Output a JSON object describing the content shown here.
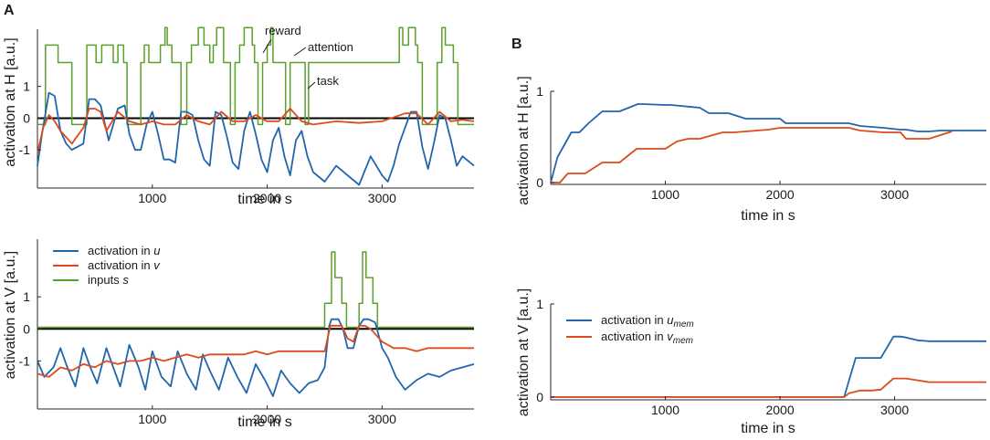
{
  "colors": {
    "u": "#2166ac",
    "v": "#dd4a1b",
    "s": "#5aa02c",
    "axis": "#262626",
    "zero": "#000000"
  },
  "panel_labels": {
    "a": "A",
    "b": "B"
  },
  "legend_A": {
    "u": "activation in u",
    "v": "activation in v",
    "s": "inputs s"
  },
  "legend_B": {
    "u": "activation in u",
    "u_sub": "mem",
    "v": "activation in v",
    "v_sub": "mem"
  },
  "annotations": {
    "reward": "reward",
    "attention": "attention",
    "task": "task"
  },
  "chart_data": [
    {
      "id": "A-top",
      "type": "line",
      "title": "",
      "xlabel": "time in s",
      "ylabel": "activation at H [a.u.]",
      "xlim": [
        0,
        3800
      ],
      "ylim": [
        -2.2,
        2.8
      ],
      "xticks": [
        1000,
        2000,
        3000
      ],
      "yticks": [
        1,
        0,
        -1
      ],
      "zero_line": true,
      "series": [
        {
          "name": "activation in u",
          "key": "u",
          "x": [
            0,
            40,
            100,
            150,
            200,
            250,
            300,
            400,
            450,
            500,
            550,
            620,
            700,
            760,
            800,
            850,
            900,
            950,
            1000,
            1050,
            1100,
            1150,
            1200,
            1250,
            1300,
            1350,
            1400,
            1450,
            1500,
            1550,
            1600,
            1650,
            1700,
            1750,
            1800,
            1850,
            1900,
            1950,
            2000,
            2050,
            2100,
            2150,
            2200,
            2250,
            2300,
            2350,
            2400,
            2500,
            2600,
            2700,
            2800,
            2900,
            3000,
            3050,
            3100,
            3150,
            3200,
            3250,
            3300,
            3350,
            3400,
            3450,
            3500,
            3550,
            3600,
            3650,
            3700,
            3800
          ],
          "y": [
            -1.5,
            -0.5,
            0.8,
            0.7,
            -0.4,
            -0.8,
            -1.0,
            -0.8,
            0.6,
            0.6,
            0.4,
            -0.7,
            0.3,
            0.4,
            -0.5,
            -1.0,
            -1.0,
            -0.2,
            0.2,
            -0.5,
            -1.3,
            -1.3,
            -1.4,
            0.2,
            0.2,
            0.1,
            -0.7,
            -1.3,
            -1.5,
            0.2,
            0.1,
            -0.6,
            -1.4,
            -1.6,
            -0.4,
            0.2,
            -0.5,
            -1.3,
            -1.7,
            -0.7,
            -0.3,
            -1.2,
            -1.8,
            -0.7,
            -0.4,
            -1.2,
            -1.7,
            -2.0,
            -1.5,
            -1.8,
            -2.1,
            -1.2,
            -1.8,
            -2.0,
            -1.5,
            -0.8,
            -0.3,
            0.2,
            0.2,
            -0.9,
            -1.6,
            -0.8,
            0.1,
            0.0,
            -0.7,
            -1.5,
            -1.2,
            -1.5
          ]
        },
        {
          "name": "activation in v",
          "key": "v",
          "x": [
            0,
            50,
            100,
            150,
            200,
            300,
            400,
            450,
            500,
            550,
            600,
            700,
            800,
            900,
            1000,
            1100,
            1200,
            1300,
            1400,
            1500,
            1600,
            1700,
            1800,
            1900,
            2000,
            2100,
            2200,
            2300,
            2400,
            2600,
            2800,
            3000,
            3200,
            3300,
            3400,
            3500,
            3600,
            3700,
            3800
          ],
          "y": [
            -1.1,
            -0.3,
            0.1,
            -0.1,
            -0.4,
            -0.8,
            -0.3,
            0.3,
            0.3,
            0.2,
            -0.4,
            0.2,
            -0.1,
            -0.2,
            -0.1,
            -0.2,
            -0.2,
            0.1,
            -0.1,
            -0.2,
            0.2,
            -0.1,
            -0.1,
            0.1,
            -0.1,
            -0.1,
            0.3,
            -0.1,
            -0.2,
            -0.1,
            -0.15,
            -0.1,
            0.15,
            0.15,
            -0.2,
            0.2,
            -0.1,
            -0.05,
            -0.1
          ]
        },
        {
          "name": "inputs s",
          "key": "s",
          "x": [
            0,
            70,
            70,
            180,
            180,
            300,
            300,
            430,
            430,
            510,
            510,
            560,
            560,
            660,
            660,
            700,
            700,
            750,
            750,
            780,
            780,
            900,
            900,
            930,
            930,
            970,
            970,
            1070,
            1070,
            1110,
            1110,
            1130,
            1130,
            1170,
            1170,
            1250,
            1250,
            1300,
            1300,
            1340,
            1340,
            1400,
            1400,
            1450,
            1450,
            1500,
            1500,
            1530,
            1530,
            1560,
            1560,
            1620,
            1620,
            1680,
            1680,
            1720,
            1720,
            1760,
            1760,
            1800,
            1800,
            1870,
            1870,
            1890,
            1890,
            1920,
            1920,
            1960,
            1960,
            2000,
            2000,
            2030,
            2030,
            2050,
            2050,
            2160,
            2160,
            2200,
            2200,
            2330,
            2330,
            2360,
            2360,
            3150,
            3150,
            3180,
            3180,
            3230,
            3230,
            3290,
            3290,
            3310,
            3310,
            3350,
            3350,
            3480,
            3480,
            3520,
            3520,
            3550,
            3550,
            3620,
            3620,
            3660,
            3660,
            3800
          ],
          "y": [
            0,
            0,
            2,
            2,
            1,
            1,
            0,
            0,
            2,
            2,
            1,
            1,
            2,
            2,
            1,
            1,
            2,
            2,
            1,
            1,
            0,
            0,
            1,
            1,
            2,
            2,
            1,
            1,
            2,
            2,
            3,
            3,
            2,
            2,
            1,
            1,
            0,
            0,
            1,
            1,
            2,
            2,
            3,
            3,
            2,
            2,
            1,
            1,
            2,
            2,
            3,
            3,
            1,
            1,
            0,
            0,
            1,
            1,
            2,
            2,
            3,
            3,
            2,
            2,
            1,
            1,
            0,
            0,
            1,
            1,
            2,
            2,
            3,
            3,
            1,
            1,
            0,
            0,
            1,
            1,
            0,
            0,
            1,
            1,
            3,
            3,
            2,
            2,
            3,
            3,
            2,
            2,
            1,
            1,
            0,
            0,
            1,
            1,
            3,
            3,
            2,
            2,
            1,
            1,
            0,
            0
          ]
        }
      ]
    },
    {
      "id": "A-bottom",
      "type": "line",
      "title": "",
      "xlabel": "time in s",
      "ylabel": "activation at V [a.u.]",
      "xlim": [
        0,
        3800
      ],
      "ylim": [
        -2.5,
        2.8
      ],
      "xticks": [
        1000,
        2000,
        3000
      ],
      "yticks": [
        1,
        0,
        -1
      ],
      "zero_line": true,
      "series": [
        {
          "name": "activation in u",
          "key": "u",
          "x": [
            0,
            60,
            140,
            200,
            260,
            330,
            400,
            460,
            520,
            600,
            660,
            720,
            800,
            880,
            940,
            1000,
            1080,
            1160,
            1220,
            1300,
            1380,
            1440,
            1500,
            1580,
            1660,
            1740,
            1820,
            1900,
            1980,
            2050,
            2120,
            2200,
            2280,
            2360,
            2440,
            2500,
            2540,
            2560,
            2620,
            2660,
            2700,
            2750,
            2800,
            2840,
            2880,
            2940,
            3000,
            3050,
            3120,
            3200,
            3300,
            3400,
            3500,
            3600,
            3700,
            3800
          ],
          "y": [
            -1.0,
            -1.5,
            -1.2,
            -0.6,
            -1.2,
            -1.8,
            -0.6,
            -1.2,
            -1.7,
            -0.6,
            -1.2,
            -1.8,
            -0.5,
            -1.2,
            -1.9,
            -0.7,
            -1.5,
            -1.8,
            -0.7,
            -1.4,
            -1.9,
            -0.8,
            -1.3,
            -1.9,
            -0.9,
            -1.5,
            -2.0,
            -1.1,
            -1.6,
            -2.1,
            -1.3,
            -1.7,
            -2.0,
            -1.7,
            -1.6,
            -1.2,
            0.1,
            0.3,
            0.3,
            0.0,
            -0.6,
            -0.6,
            0.1,
            0.3,
            0.3,
            0.2,
            -0.6,
            -0.9,
            -1.5,
            -1.9,
            -1.6,
            -1.4,
            -1.5,
            -1.3,
            -1.2,
            -1.1
          ]
        },
        {
          "name": "activation in v",
          "key": "v",
          "x": [
            0,
            100,
            200,
            300,
            400,
            500,
            600,
            700,
            800,
            900,
            1000,
            1100,
            1200,
            1300,
            1400,
            1500,
            1600,
            1700,
            1800,
            1900,
            2000,
            2100,
            2200,
            2300,
            2400,
            2500,
            2550,
            2600,
            2650,
            2700,
            2750,
            2800,
            2850,
            2900,
            3000,
            3100,
            3200,
            3300,
            3400,
            3500,
            3600,
            3700,
            3800
          ],
          "y": [
            -1.4,
            -1.5,
            -1.2,
            -1.3,
            -1.1,
            -1.2,
            -1.0,
            -1.1,
            -1.0,
            -1.0,
            -0.9,
            -1.0,
            -0.9,
            -0.8,
            -0.9,
            -0.8,
            -0.8,
            -0.8,
            -0.8,
            -0.7,
            -0.8,
            -0.7,
            -0.7,
            -0.7,
            -0.7,
            -0.7,
            0.1,
            0.1,
            0.1,
            -0.3,
            -0.4,
            0.1,
            0.1,
            0.0,
            -0.4,
            -0.6,
            -0.6,
            -0.7,
            -0.6,
            -0.6,
            -0.6,
            -0.6,
            -0.6
          ]
        },
        {
          "name": "inputs s",
          "key": "s",
          "x": [
            0,
            2500,
            2500,
            2560,
            2560,
            2590,
            2590,
            2650,
            2650,
            2690,
            2690,
            2800,
            2800,
            2830,
            2830,
            2860,
            2860,
            2920,
            2920,
            2960,
            2960,
            3800
          ],
          "y": [
            0,
            0,
            1,
            1,
            3,
            3,
            2,
            2,
            1,
            1,
            0,
            0,
            1,
            1,
            3,
            3,
            2,
            2,
            1,
            1,
            0,
            0
          ]
        }
      ]
    },
    {
      "id": "B-top",
      "type": "line",
      "title": "",
      "xlabel": "time in s",
      "ylabel": "activation at H [a.u.]",
      "xlim": [
        0,
        3800
      ],
      "ylim": [
        -0.02,
        1.0
      ],
      "xticks": [
        1000,
        2000,
        3000
      ],
      "yticks": [
        1,
        0
      ],
      "series": [
        {
          "name": "activation in u_mem",
          "key": "u",
          "x": [
            0,
            60,
            180,
            250,
            330,
            450,
            520,
            600,
            760,
            800,
            1000,
            1050,
            1300,
            1380,
            1500,
            1550,
            1700,
            2000,
            2050,
            2500,
            2600,
            2700,
            2900,
            3050,
            3100,
            3200,
            3300,
            3400,
            3500,
            3800
          ],
          "y": [
            0,
            0.28,
            0.55,
            0.55,
            0.65,
            0.78,
            0.78,
            0.78,
            0.86,
            0.86,
            0.85,
            0.85,
            0.82,
            0.76,
            0.76,
            0.76,
            0.7,
            0.7,
            0.65,
            0.65,
            0.65,
            0.62,
            0.6,
            0.58,
            0.58,
            0.56,
            0.56,
            0.57,
            0.57,
            0.57
          ]
        },
        {
          "name": "activation in v_mem",
          "key": "v",
          "x": [
            0,
            80,
            150,
            250,
            300,
            450,
            500,
            600,
            750,
            1000,
            1100,
            1200,
            1300,
            1500,
            1600,
            1900,
            2000,
            2500,
            2600,
            2700,
            2900,
            3050,
            3100,
            3300,
            3400,
            3500
          ],
          "y": [
            0,
            0,
            0.1,
            0.1,
            0.1,
            0.22,
            0.22,
            0.22,
            0.37,
            0.37,
            0.45,
            0.48,
            0.48,
            0.55,
            0.55,
            0.58,
            0.6,
            0.6,
            0.6,
            0.57,
            0.55,
            0.55,
            0.48,
            0.48,
            0.52,
            0.56
          ]
        }
      ]
    },
    {
      "id": "B-bottom",
      "type": "line",
      "title": "",
      "xlabel": "time in s",
      "ylabel": "activation at V [a.u.]",
      "xlim": [
        0,
        3800
      ],
      "ylim": [
        -0.03,
        1.0
      ],
      "xticks": [
        1000,
        2000,
        3000
      ],
      "yticks": [
        1,
        0
      ],
      "series": [
        {
          "name": "activation in u_mem",
          "key": "u",
          "x": [
            0,
            2500,
            2560,
            2660,
            2800,
            2880,
            2990,
            3050,
            3100,
            3200,
            3300,
            3400,
            3500,
            3800
          ],
          "y": [
            0,
            0,
            0,
            0.42,
            0.42,
            0.42,
            0.65,
            0.65,
            0.64,
            0.61,
            0.6,
            0.6,
            0.6,
            0.6
          ]
        },
        {
          "name": "activation in v_mem",
          "key": "v",
          "x": [
            0,
            2560,
            2600,
            2700,
            2800,
            2880,
            2990,
            3100,
            3200,
            3300,
            3500,
            3800
          ],
          "y": [
            0,
            0,
            0.04,
            0.07,
            0.07,
            0.08,
            0.2,
            0.2,
            0.18,
            0.16,
            0.16,
            0.16
          ]
        }
      ]
    }
  ]
}
